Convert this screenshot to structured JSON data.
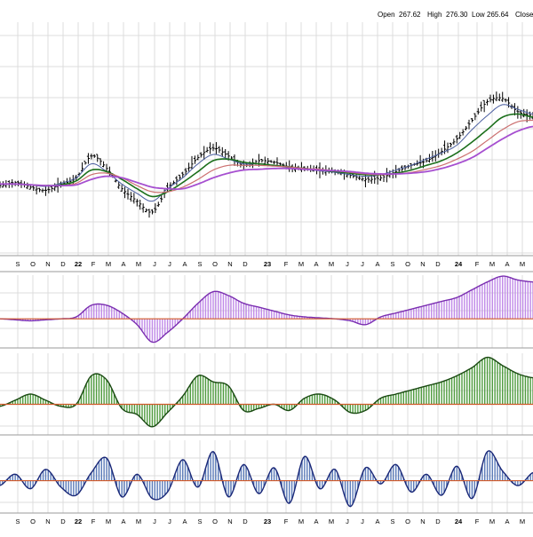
{
  "header": {
    "open_label": "Open",
    "open_value": "267.62",
    "high_label": "High",
    "high_value": "276.30",
    "low_label": "Low",
    "low_value": "265.64",
    "close_label": "Close"
  },
  "chart_data": {
    "type": "line",
    "title": "",
    "xlabel": "",
    "ylabel": "",
    "grid": true,
    "x_tick_labels": [
      "S",
      "O",
      "N",
      "D",
      "22",
      "F",
      "M",
      "A",
      "M",
      "J",
      "J",
      "A",
      "S",
      "O",
      "N",
      "D",
      "23",
      "F",
      "M",
      "A",
      "M",
      "J",
      "J",
      "A",
      "S",
      "O",
      "N",
      "D",
      "24",
      "F",
      "M",
      "A",
      "M"
    ],
    "x_tick_positions": [
      20,
      37,
      54,
      71,
      88,
      105,
      122,
      139,
      156,
      174,
      191,
      208,
      225,
      242,
      259,
      276,
      301,
      322,
      339,
      356,
      373,
      391,
      408,
      425,
      442,
      459,
      476,
      493,
      516,
      537,
      554,
      571,
      588
    ],
    "colors": {
      "price": "#000000",
      "ma_fast": "#4a5ea0",
      "ma_green": "#1b6f1b",
      "ma_red": "#cc7070",
      "ma_purple": "#a64fd0",
      "panel1_fill": "#c08ae8",
      "panel1_line": "#7a2eb0",
      "panel2_fill": "#4e9b3e",
      "panel2_line": "#1a4a12",
      "panel3_fill": "#5a7ab8",
      "panel3_line": "#1a2878",
      "zero_line": "#d05a2a",
      "grid": "#dcdcdc"
    },
    "x": [
      0,
      0.1,
      0.2,
      0.3,
      0.4,
      0.5,
      0.6,
      0.7,
      0.8,
      0.9,
      1.0,
      1.1,
      1.2,
      1.3,
      1.4,
      1.5,
      1.6,
      1.7,
      1.8,
      1.9,
      2.0,
      2.1,
      2.2,
      2.3,
      2.4,
      2.5,
      2.6,
      2.7,
      2.8,
      2.9,
      3.0,
      3.1,
      3.2,
      3.3,
      3.4,
      3.5
    ],
    "price_panel": {
      "ylim": [
        0,
        300
      ],
      "price": [
        90,
        94,
        88,
        84,
        92,
        100,
        128,
        112,
        86,
        70,
        56,
        86,
        104,
        126,
        138,
        128,
        116,
        122,
        120,
        114,
        112,
        110,
        108,
        103,
        98,
        100,
        108,
        116,
        122,
        134,
        150,
        174,
        198,
        202,
        185,
        180
      ],
      "series": [
        {
          "name": "",
          "key": "ma_fast",
          "values": [
            92,
            92,
            91,
            89,
            93,
            100,
            118,
            108,
            92,
            80,
            70,
            86,
            100,
            118,
            130,
            124,
            118,
            118,
            116,
            113,
            111,
            109,
            107,
            104,
            102,
            104,
            110,
            116,
            124,
            132,
            142,
            162,
            180,
            194,
            188,
            182
          ]
        },
        {
          "name": "",
          "key": "ma_green",
          "values": [
            92,
            92,
            91,
            90,
            91,
            96,
            110,
            108,
            98,
            86,
            76,
            82,
            94,
            108,
            122,
            124,
            120,
            118,
            116,
            114,
            112,
            110,
            108,
            106,
            104,
            104,
            106,
            110,
            116,
            122,
            132,
            146,
            162,
            178,
            182,
            178
          ]
        },
        {
          "name": "",
          "key": "ma_red",
          "values": [
            92,
            92,
            91,
            90,
            90,
            93,
            104,
            106,
            100,
            90,
            82,
            82,
            88,
            98,
            110,
            116,
            116,
            116,
            115,
            114,
            112,
            111,
            109,
            107,
            105,
            104,
            105,
            107,
            111,
            116,
            124,
            134,
            148,
            162,
            172,
            174
          ]
        },
        {
          "name": "",
          "key": "ma_purple",
          "values": [
            92,
            92,
            91,
            90,
            90,
            91,
            98,
            102,
            100,
            94,
            88,
            86,
            86,
            92,
            100,
            106,
            110,
            111,
            112,
            112,
            111,
            110,
            109,
            108,
            106,
            105,
            105,
            106,
            108,
            112,
            118,
            126,
            138,
            150,
            160,
            166
          ]
        }
      ]
    },
    "panel1": {
      "ylim": [
        -30,
        45
      ],
      "values": [
        0,
        -1,
        -2,
        -1,
        0,
        2,
        14,
        14,
        6,
        -6,
        -24,
        -14,
        0,
        16,
        28,
        24,
        16,
        12,
        8,
        4,
        2,
        1,
        0,
        -2,
        -6,
        2,
        6,
        10,
        14,
        18,
        22,
        30,
        38,
        44,
        40,
        38
      ]
    },
    "panel2": {
      "ylim": [
        -30,
        50
      ],
      "values": [
        -2,
        4,
        10,
        4,
        -2,
        0,
        28,
        24,
        -4,
        -10,
        -22,
        -8,
        8,
        28,
        22,
        18,
        -6,
        -4,
        0,
        -6,
        6,
        10,
        4,
        -8,
        -6,
        6,
        10,
        14,
        18,
        22,
        28,
        36,
        46,
        38,
        30,
        26
      ]
    },
    "panel3": {
      "ylim": [
        -40,
        50
      ],
      "values": [
        -6,
        8,
        -10,
        14,
        -8,
        -18,
        10,
        28,
        -20,
        8,
        -22,
        -14,
        26,
        -8,
        36,
        -20,
        20,
        -16,
        16,
        -28,
        30,
        -10,
        14,
        -32,
        16,
        -4,
        20,
        -14,
        8,
        -18,
        18,
        -22,
        36,
        12,
        -6,
        10
      ]
    }
  }
}
